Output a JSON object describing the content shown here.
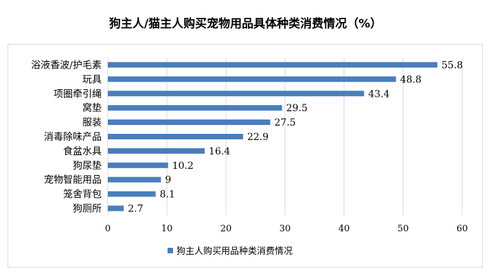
{
  "chart_data": {
    "type": "bar",
    "orientation": "horizontal",
    "title": "狗主人/猫主人购买宠物用品具体种类消费情况（%）",
    "categories": [
      "浴液香波/护毛素",
      "玩具",
      "项圈牵引绳",
      "窝垫",
      "服装",
      "消毒除味产品",
      "食盆水具",
      "狗尿垫",
      "宠物智能用品",
      "笼舍背包",
      "狗厕所"
    ],
    "series": [
      {
        "name": "狗主人购买用品种类消费情况",
        "values": [
          55.8,
          48.8,
          43.4,
          29.5,
          27.5,
          22.9,
          16.4,
          10.2,
          9,
          8.1,
          2.7
        ]
      }
    ],
    "data_labels": [
      "55.8",
      "48.8",
      "43.4",
      "29.5",
      "27.5",
      "22.9",
      "16.4",
      "10.2",
      "9",
      "8.1",
      "2.7"
    ],
    "xlim": [
      0,
      60
    ],
    "x_ticks": [
      "0",
      "10",
      "20",
      "30",
      "40",
      "50",
      "60"
    ],
    "grid": "vertical",
    "legend_position": "bottom",
    "bar_color": "#4a7ebb",
    "grid_color": "#d9d9d9"
  }
}
